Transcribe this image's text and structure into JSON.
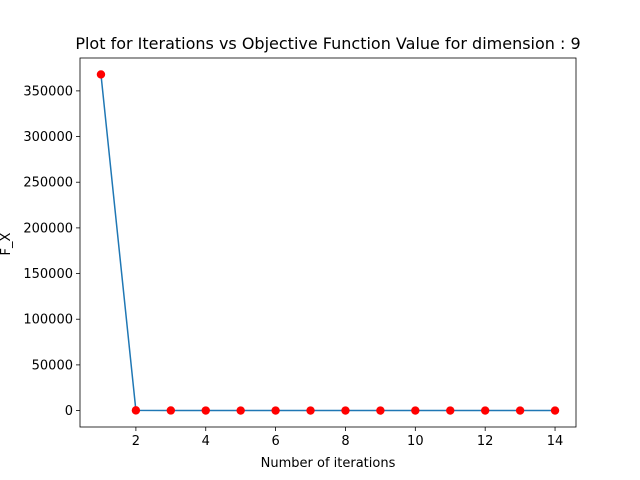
{
  "chart_data": {
    "type": "line",
    "title": "Plot for Iterations vs Objective Function Value for dimension : 9",
    "xlabel": "Number of iterations",
    "ylabel": "F_X",
    "x": [
      1,
      2,
      3,
      4,
      5,
      6,
      7,
      8,
      9,
      10,
      11,
      12,
      13,
      14
    ],
    "series": [
      {
        "values": [
          368000,
          200,
          80,
          40,
          20,
          10,
          5,
          3,
          2,
          1,
          1,
          0.5,
          0.5,
          0.5
        ]
      }
    ],
    "xlim": [
      0.4,
      14.6
    ],
    "ylim": [
      -18000,
      386000
    ],
    "xticks": [
      2,
      4,
      6,
      8,
      10,
      12,
      14
    ],
    "yticks": [
      0,
      50000,
      100000,
      150000,
      200000,
      250000,
      300000,
      350000
    ],
    "grid": false,
    "legend": "none",
    "colors": {
      "line": "#1f77b4",
      "marker": "#ff0000",
      "axis": "#000000"
    }
  }
}
